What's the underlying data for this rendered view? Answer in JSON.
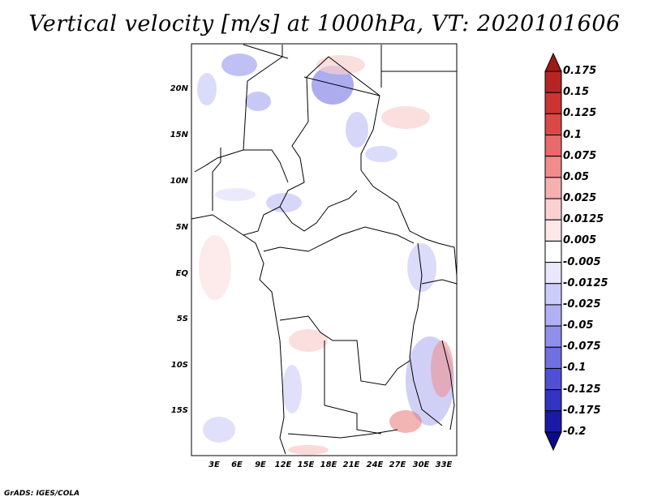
{
  "title": "Vertical velocity [m/s] at 1000hPa, VT: 2020101606",
  "footer": "GrADS: IGES/COLA",
  "map": {
    "lat_labels": [
      "20N",
      "15N",
      "10N",
      "5N",
      "EQ",
      "5S",
      "10S",
      "15S"
    ],
    "lon_labels": [
      "3E",
      "6E",
      "9E",
      "12E",
      "15E",
      "18E",
      "21E",
      "24E",
      "27E",
      "30E",
      "33E"
    ]
  },
  "colorbar": {
    "levels": [
      "0.175",
      "0.15",
      "0.125",
      "0.1",
      "0.075",
      "0.05",
      "0.025",
      "0.0125",
      "0.005",
      "-0.005",
      "-0.0125",
      "-0.025",
      "-0.05",
      "-0.075",
      "-0.1",
      "-0.125",
      "-0.175",
      "-0.2"
    ],
    "colors": [
      "#a01818",
      "#b72424",
      "#cc3333",
      "#dc4848",
      "#e86a6a",
      "#f08c8c",
      "#f5b0b0",
      "#fad0d0",
      "#fde8e8",
      "#ffffff",
      "#e8e8fc",
      "#ccccf8",
      "#b0b0f2",
      "#9090ea",
      "#7070e0",
      "#5050d4",
      "#3333c4",
      "#1a1aa8",
      "#0a0a8c"
    ]
  }
}
